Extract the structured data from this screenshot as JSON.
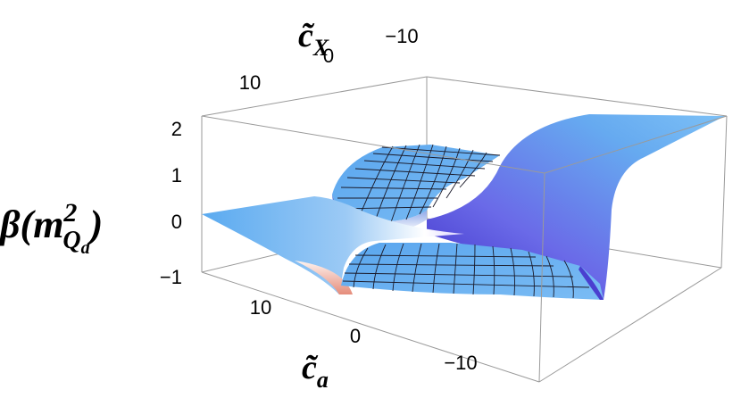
{
  "chart_data": {
    "type": "surface3d",
    "xlabel_base": "c̃",
    "xlabel_sub": "a",
    "ylabel_base": "c̃",
    "ylabel_sub": "X",
    "zlabel_main": "β(m",
    "zlabel_sup": "2",
    "zlabel_sub": "Q",
    "zlabel_subsub": "a",
    "zlabel_close": ")",
    "x_ticks": [
      "10",
      "0",
      "−10"
    ],
    "y_ticks": [
      "10",
      "0",
      "−10"
    ],
    "z_ticks": [
      "2",
      "1",
      "0",
      "−1"
    ],
    "zlim": [
      -1,
      2
    ],
    "surface_levels": {
      "far_left_plateau": 0,
      "back_plateau": 1,
      "front_plateau": -1,
      "right_plateau": 2
    },
    "colors": {
      "surface_top": "#5aaaf0",
      "surface_rise": "#6a6ae8",
      "surface_dark": "#4a3fd0",
      "surface_highlight": "#ffffff",
      "surface_warm": "#f0a090",
      "box": "#9a9a9a"
    }
  }
}
